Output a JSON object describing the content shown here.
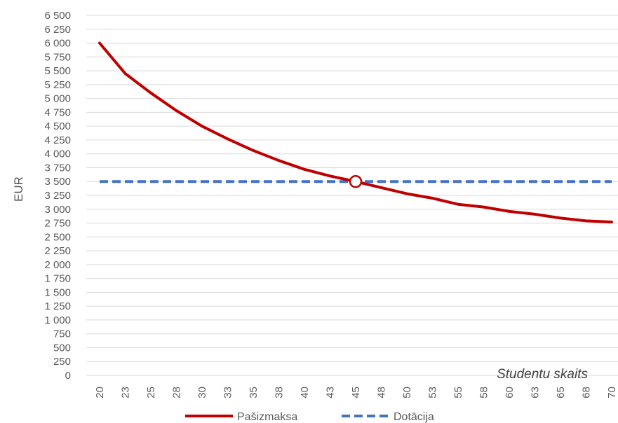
{
  "chart_data": {
    "type": "line",
    "title": "",
    "xlabel": "Studentu skaits",
    "ylabel": "EUR",
    "ylim": [
      0,
      6500
    ],
    "y_tick_step": 250,
    "y_tick_labels": [
      "0",
      "250",
      "500",
      "750",
      "1 000",
      "1 250",
      "1 500",
      "1 750",
      "2 000",
      "2 250",
      "2 500",
      "2 750",
      "3 000",
      "3 250",
      "3 500",
      "3 750",
      "4 000",
      "4 250",
      "4 500",
      "4 750",
      "5 000",
      "5 250",
      "5 500",
      "5 750",
      "6 000",
      "6 250",
      "6 500"
    ],
    "x_tick_labels": [
      "20",
      "23",
      "25",
      "28",
      "30",
      "33",
      "35",
      "38",
      "40",
      "43",
      "45",
      "48",
      "50",
      "53",
      "55",
      "58",
      "60",
      "63",
      "65",
      "68",
      "70"
    ],
    "x": [
      20,
      22.5,
      25,
      27.5,
      30,
      32.5,
      35,
      37.5,
      40,
      42.5,
      45,
      47.5,
      50,
      52.5,
      55,
      57.5,
      60,
      62.5,
      65,
      67.5,
      70
    ],
    "grid": true,
    "legend_position": "bottom",
    "series": [
      {
        "name": "Pašizmaksa",
        "style": "solid",
        "color": "#c00000",
        "values": [
          6000,
          5450,
          5100,
          4780,
          4500,
          4270,
          4060,
          3880,
          3720,
          3600,
          3500,
          3390,
          3280,
          3200,
          3090,
          3040,
          2960,
          2910,
          2840,
          2790,
          2770
        ]
      },
      {
        "name": "Dotācija",
        "style": "dashed",
        "color": "#4472c4",
        "values": [
          3500,
          3500,
          3500,
          3500,
          3500,
          3500,
          3500,
          3500,
          3500,
          3500,
          3500,
          3500,
          3500,
          3500,
          3500,
          3500,
          3500,
          3500,
          3500,
          3500,
          3500
        ]
      }
    ],
    "annotations": [
      {
        "type": "circle-marker",
        "x": 45,
        "y": 3500,
        "color": "#c00000"
      }
    ]
  }
}
